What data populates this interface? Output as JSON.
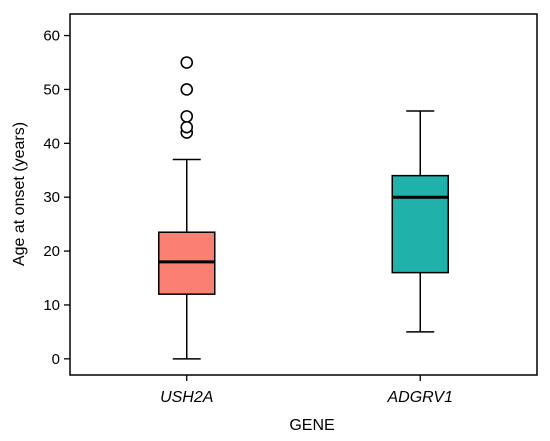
{
  "chart_data": {
    "type": "boxplot",
    "xlabel": "GENE",
    "ylabel": "Age at onset (years)",
    "ylim": [
      -3,
      64
    ],
    "yticks": [
      0,
      10,
      20,
      30,
      40,
      50,
      60
    ],
    "grid": false,
    "categories": [
      "USH2A",
      "ADGRV1"
    ],
    "boxes": [
      {
        "category": "USH2A",
        "color": "#fa8072",
        "whisker_low": 0,
        "q1": 12,
        "median": 18,
        "q3": 23.5,
        "whisker_high": 37,
        "outliers": [
          42,
          43,
          45,
          50,
          55
        ]
      },
      {
        "category": "ADGRV1",
        "color": "#20b2aa",
        "whisker_low": 5,
        "q1": 16,
        "median": 30,
        "q3": 34,
        "whisker_high": 46,
        "outliers": []
      }
    ]
  }
}
